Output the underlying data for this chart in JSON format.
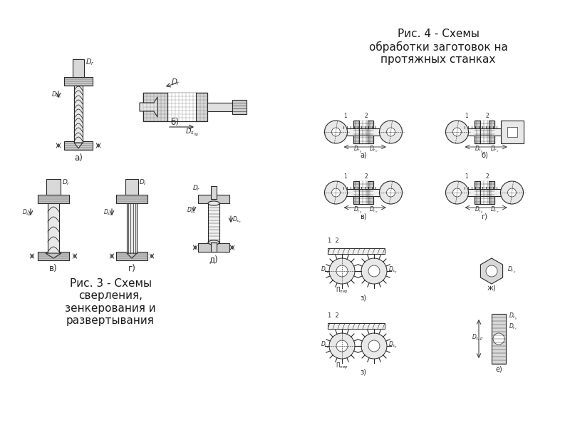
{
  "bg_color": "#ffffff",
  "fig_width": 8.0,
  "fig_height": 6.0,
  "title3": "Рис. 3 - Схемы\nсверления,\nзенкерования и\nразвертывания",
  "title4": "Рис. 4 - Схемы\nобработки заготовок на\nпротяжных станках",
  "labels_top": [
    "а)",
    "б)"
  ],
  "labels_mid": [
    "в)",
    "г)",
    "д)"
  ],
  "text_color": "#1a1a1a",
  "line_color": "#2a2a2a",
  "hatch_color": "#555555",
  "diagram_color": "#888888"
}
